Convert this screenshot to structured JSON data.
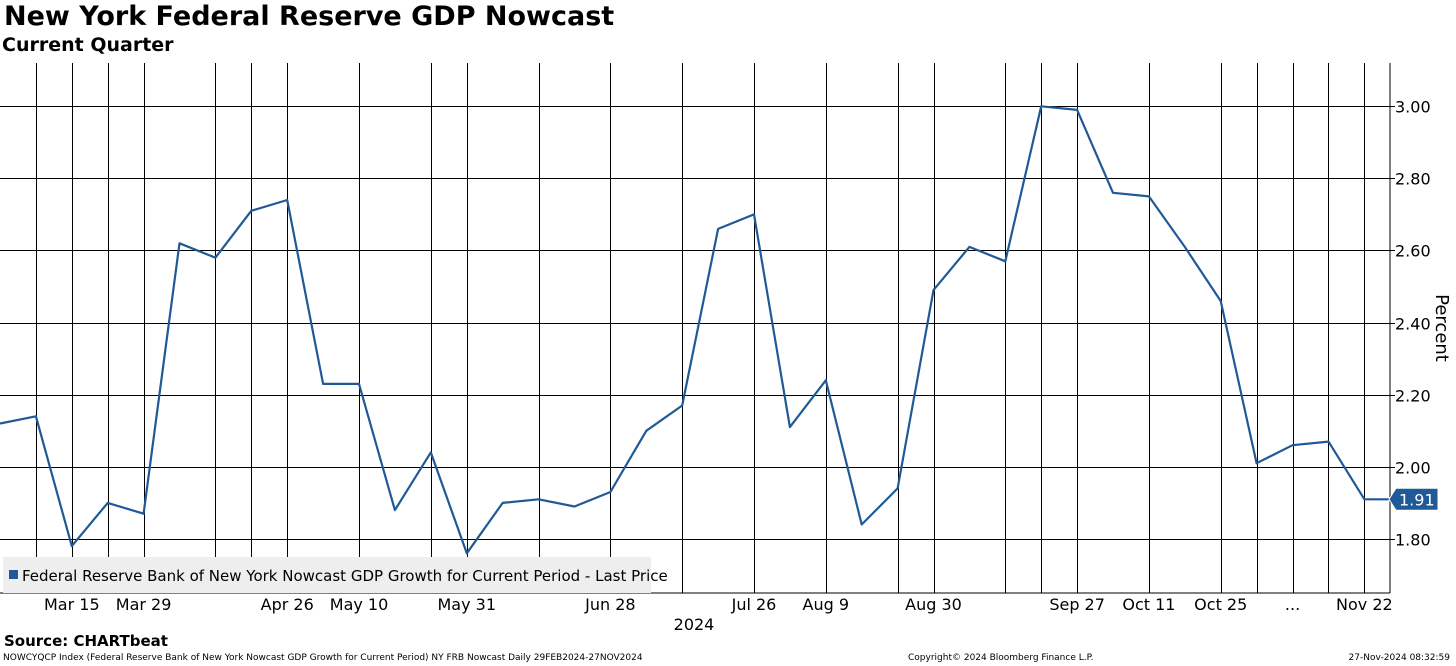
{
  "chart_data": {
    "type": "line",
    "title": "New York Federal Reserve GDP Nowcast",
    "subtitle": "Current Quarter",
    "ylabel": "Percent",
    "year_label": "2024",
    "ylim": [
      1.65,
      3.12
    ],
    "yticks": [
      "1.80",
      "2.00",
      "2.20",
      "2.40",
      "2.60",
      "2.80",
      "3.00"
    ],
    "xlim": [
      "2024-03-01",
      "2024-11-27"
    ],
    "xticks": [
      {
        "date": "2024-03-15",
        "label": "Mar 15"
      },
      {
        "date": "2024-03-29",
        "label": "Mar 29"
      },
      {
        "date": "2024-04-26",
        "label": "Apr 26"
      },
      {
        "date": "2024-05-10",
        "label": "May 10"
      },
      {
        "date": "2024-05-31",
        "label": "May 31"
      },
      {
        "date": "2024-06-28",
        "label": "Jun 28"
      },
      {
        "date": "2024-07-26",
        "label": "Jul 26"
      },
      {
        "date": "2024-08-09",
        "label": "Aug 9"
      },
      {
        "date": "2024-08-30",
        "label": "Aug 30"
      },
      {
        "date": "2024-09-27",
        "label": "Sep 27"
      },
      {
        "date": "2024-10-11",
        "label": "Oct 11"
      },
      {
        "date": "2024-10-25",
        "label": "Oct 25"
      },
      {
        "date": "2024-11-08",
        "label": "..."
      },
      {
        "date": "2024-11-22",
        "label": "Nov 22"
      }
    ],
    "gridlines_x": [
      "2024-03-08",
      "2024-03-15",
      "2024-03-22",
      "2024-03-29",
      "2024-04-12",
      "2024-04-19",
      "2024-04-26",
      "2024-05-10",
      "2024-05-24",
      "2024-05-31",
      "2024-06-14",
      "2024-06-28",
      "2024-07-12",
      "2024-07-26",
      "2024-08-09",
      "2024-08-23",
      "2024-08-30",
      "2024-09-13",
      "2024-09-20",
      "2024-09-27",
      "2024-10-11",
      "2024-10-25",
      "2024-11-01",
      "2024-11-08",
      "2024-11-15",
      "2024-11-22"
    ],
    "grid": true,
    "legend_position": "bottom-left",
    "series": [
      {
        "name": "Federal Reserve Bank of New York Nowcast GDP Growth for Current Period - Last Price",
        "color": "#1f5a96",
        "last_value": "1.91",
        "x": [
          "2024-03-01",
          "2024-03-08",
          "2024-03-15",
          "2024-03-22",
          "2024-03-29",
          "2024-04-05",
          "2024-04-12",
          "2024-04-19",
          "2024-04-26",
          "2024-05-03",
          "2024-05-10",
          "2024-05-17",
          "2024-05-24",
          "2024-05-31",
          "2024-06-07",
          "2024-06-14",
          "2024-06-21",
          "2024-06-28",
          "2024-07-05",
          "2024-07-12",
          "2024-07-19",
          "2024-07-26",
          "2024-08-02",
          "2024-08-09",
          "2024-08-16",
          "2024-08-23",
          "2024-08-30",
          "2024-09-06",
          "2024-09-13",
          "2024-09-20",
          "2024-09-27",
          "2024-10-04",
          "2024-10-11",
          "2024-10-18",
          "2024-10-25",
          "2024-11-01",
          "2024-11-08",
          "2024-11-15",
          "2024-11-22",
          "2024-11-27"
        ],
        "values": [
          2.12,
          2.14,
          1.78,
          1.9,
          1.87,
          2.62,
          2.58,
          2.71,
          2.74,
          2.23,
          2.23,
          1.88,
          2.04,
          1.76,
          1.9,
          1.91,
          1.89,
          1.93,
          2.1,
          2.17,
          2.66,
          2.7,
          2.11,
          2.24,
          1.84,
          1.94,
          2.49,
          2.61,
          2.57,
          3.0,
          2.99,
          2.76,
          2.75,
          2.61,
          2.46,
          2.01,
          2.06,
          2.07,
          1.91,
          1.91
        ]
      }
    ]
  },
  "source_label": "Source: CHARTbeat",
  "footer": {
    "description": "NOWCYQCP Index (Federal Reserve Bank of New York Nowcast GDP Growth for Current Period) NY FRB Nowcast  Daily 29FEB2024-27NOV2024",
    "copyright": "Copyright© 2024 Bloomberg Finance L.P.",
    "timestamp": "27-Nov-2024 08:32:59"
  }
}
